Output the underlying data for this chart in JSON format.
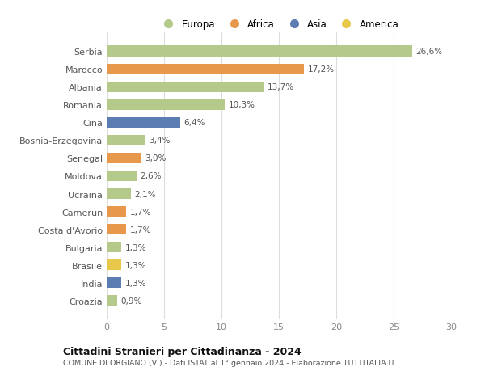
{
  "categories": [
    "Croazia",
    "India",
    "Brasile",
    "Bulgaria",
    "Costa d'Avorio",
    "Camerun",
    "Ucraina",
    "Moldova",
    "Senegal",
    "Bosnia-Erzegovina",
    "Cina",
    "Romania",
    "Albania",
    "Marocco",
    "Serbia"
  ],
  "values": [
    0.9,
    1.3,
    1.3,
    1.3,
    1.7,
    1.7,
    2.1,
    2.6,
    3.0,
    3.4,
    6.4,
    10.3,
    13.7,
    17.2,
    26.6
  ],
  "labels": [
    "0,9%",
    "1,3%",
    "1,3%",
    "1,3%",
    "1,7%",
    "1,7%",
    "2,1%",
    "2,6%",
    "3,0%",
    "3,4%",
    "6,4%",
    "10,3%",
    "13,7%",
    "17,2%",
    "26,6%"
  ],
  "colors": [
    "#b5c98a",
    "#5b7db1",
    "#e8c84a",
    "#b5c98a",
    "#e8984a",
    "#e8984a",
    "#b5c98a",
    "#b5c98a",
    "#e8984a",
    "#b5c98a",
    "#5b7db1",
    "#b5c98a",
    "#b5c98a",
    "#e8984a",
    "#b5c98a"
  ],
  "legend_labels": [
    "Europa",
    "Africa",
    "Asia",
    "America"
  ],
  "legend_colors": [
    "#b5c98a",
    "#e8984a",
    "#5b7db1",
    "#e8c84a"
  ],
  "title": "Cittadini Stranieri per Cittadinanza - 2024",
  "subtitle": "COMUNE DI ORGIANO (VI) - Dati ISTAT al 1° gennaio 2024 - Elaborazione TUTTITALIA.IT",
  "xlim": [
    0,
    30
  ],
  "xticks": [
    0,
    5,
    10,
    15,
    20,
    25,
    30
  ],
  "background_color": "#ffffff",
  "grid_color": "#dddddd",
  "bar_height": 0.6
}
